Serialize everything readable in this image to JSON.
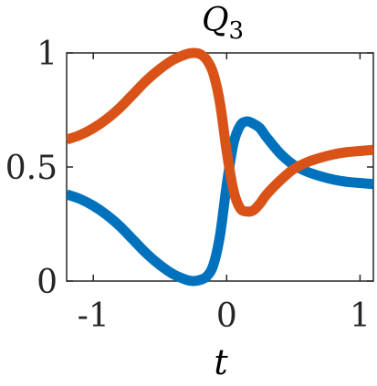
{
  "chart_data": {
    "type": "line",
    "title": "Q",
    "title_subscript": "3",
    "xlabel": "t",
    "ylabel": "",
    "xlim": [
      -1.2,
      1.1
    ],
    "ylim": [
      0,
      1
    ],
    "xticks": [
      -1,
      0,
      1
    ],
    "xtick_labels": [
      "-1",
      "0",
      "1"
    ],
    "yticks": [
      0,
      0.5,
      1
    ],
    "ytick_labels": [
      "0",
      "0.5",
      "1"
    ],
    "grid": false,
    "legend": "none",
    "series": [
      {
        "color": "#0072BD",
        "x": [
          -1.2,
          -1.1,
          -1.0,
          -0.9,
          -0.8,
          -0.7,
          -0.6,
          -0.5,
          -0.4,
          -0.3,
          -0.25,
          -0.2,
          -0.15,
          -0.1,
          -0.05,
          0.0,
          0.05,
          0.1,
          0.15,
          0.2,
          0.25,
          0.3,
          0.4,
          0.5,
          0.6,
          0.7,
          0.8,
          0.9,
          1.0,
          1.1
        ],
        "y": [
          0.38,
          0.36,
          0.33,
          0.29,
          0.24,
          0.18,
          0.12,
          0.07,
          0.03,
          0.005,
          0.0,
          0.005,
          0.02,
          0.07,
          0.2,
          0.42,
          0.6,
          0.68,
          0.7,
          0.69,
          0.67,
          0.63,
          0.56,
          0.51,
          0.48,
          0.46,
          0.445,
          0.435,
          0.43,
          0.425
        ]
      },
      {
        "color": "#D95319",
        "x": [
          -1.2,
          -1.1,
          -1.0,
          -0.9,
          -0.8,
          -0.7,
          -0.6,
          -0.5,
          -0.4,
          -0.3,
          -0.25,
          -0.2,
          -0.15,
          -0.1,
          -0.05,
          0.0,
          0.05,
          0.1,
          0.15,
          0.2,
          0.25,
          0.3,
          0.4,
          0.5,
          0.6,
          0.7,
          0.8,
          0.9,
          1.0,
          1.1
        ],
        "y": [
          0.62,
          0.64,
          0.67,
          0.71,
          0.76,
          0.82,
          0.88,
          0.93,
          0.97,
          0.995,
          1.0,
          0.995,
          0.97,
          0.91,
          0.78,
          0.57,
          0.4,
          0.32,
          0.305,
          0.31,
          0.34,
          0.38,
          0.44,
          0.49,
          0.52,
          0.54,
          0.555,
          0.565,
          0.57,
          0.575
        ]
      }
    ]
  }
}
